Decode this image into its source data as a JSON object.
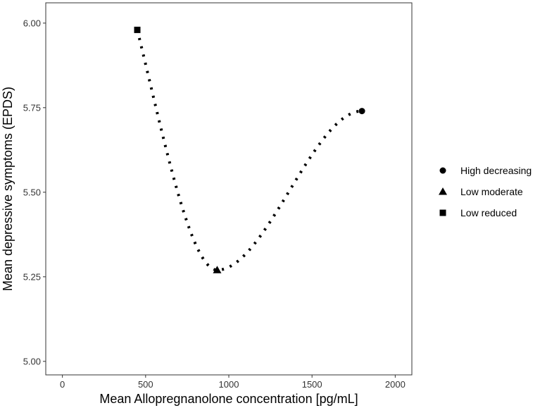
{
  "chart_data": {
    "type": "line",
    "title": "",
    "xlabel": "Mean Allopregnanolone concentration [pg/mL]",
    "ylabel": "Mean depressive symptoms (EPDS)",
    "xlim": [
      -100,
      2100
    ],
    "ylim": [
      4.96,
      6.06
    ],
    "x_ticks": [
      0,
      500,
      1000,
      1500,
      2000
    ],
    "y_ticks": [
      5.0,
      5.25,
      5.5,
      5.75,
      6.0
    ],
    "x_tick_labels": [
      "0",
      "500",
      "1000",
      "1500",
      "2000"
    ],
    "y_tick_labels": [
      "5.00",
      "5.25",
      "5.50",
      "5.75",
      "6.00"
    ],
    "grid": false,
    "legend_position": "right",
    "line_style": "dotted smooth curve",
    "series": [
      {
        "name": "Low reduced",
        "marker": "square",
        "x": 450,
        "y": 5.98
      },
      {
        "name": "Low moderate",
        "marker": "triangle",
        "x": 930,
        "y": 5.27
      },
      {
        "name": "High decreasing",
        "marker": "circle",
        "x": 1800,
        "y": 5.74
      }
    ],
    "legend_order": [
      "High decreasing",
      "Low moderate",
      "Low reduced"
    ],
    "colors": {
      "marker": "#000000",
      "line": "#000000",
      "panel_border": "#333333"
    }
  }
}
